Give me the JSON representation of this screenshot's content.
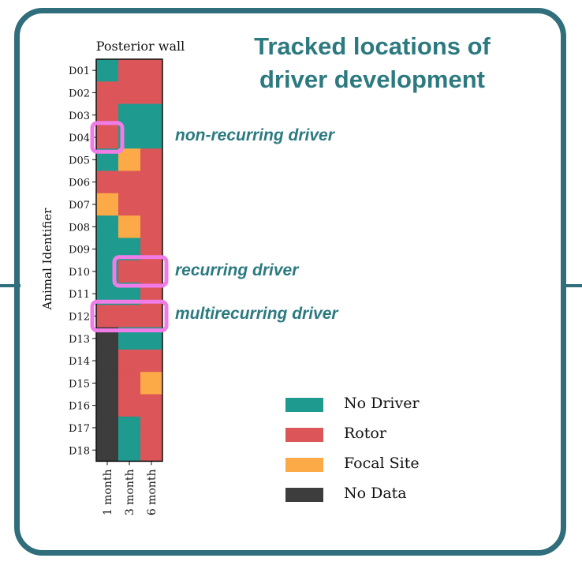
{
  "title_lines": [
    "Tracked locations of",
    "driver development"
  ],
  "colors": {
    "frame": "#2f6e7a",
    "title": "#2c7a80",
    "highlight": "#f07ce8"
  },
  "annotations": {
    "non_recurring": "non-recurring driver",
    "recurring": "recurring driver",
    "multirecurring": "multirecurring driver"
  },
  "chart_data": {
    "type": "heatmap",
    "title": "Posterior wall",
    "ylabel": "Animal Identifier",
    "xlabel": "",
    "x": [
      "1 month",
      "3 month",
      "6 month"
    ],
    "y": [
      "D01",
      "D02",
      "D03",
      "D04",
      "D05",
      "D06",
      "D07",
      "D08",
      "D09",
      "D10",
      "D11",
      "D12",
      "D13",
      "D14",
      "D15",
      "D16",
      "D17",
      "D18"
    ],
    "categories": [
      {
        "name": "No Driver",
        "color": "#1f9a8e"
      },
      {
        "name": "Rotor",
        "color": "#dc5559"
      },
      {
        "name": "Focal Site",
        "color": "#fbaa47"
      },
      {
        "name": "No Data",
        "color": "#3d3d3d"
      }
    ],
    "values": [
      [
        "No Driver",
        "Rotor",
        "Rotor"
      ],
      [
        "Rotor",
        "Rotor",
        "Rotor"
      ],
      [
        "Rotor",
        "No Driver",
        "No Driver"
      ],
      [
        "Rotor",
        "No Driver",
        "No Driver"
      ],
      [
        "No Driver",
        "Focal Site",
        "Rotor"
      ],
      [
        "Rotor",
        "Rotor",
        "Rotor"
      ],
      [
        "Focal Site",
        "Rotor",
        "Rotor"
      ],
      [
        "No Driver",
        "Focal Site",
        "Rotor"
      ],
      [
        "No Driver",
        "No Driver",
        "Rotor"
      ],
      [
        "No Driver",
        "Rotor",
        "Rotor"
      ],
      [
        "No Driver",
        "No Driver",
        "Rotor"
      ],
      [
        "Rotor",
        "Rotor",
        "Rotor"
      ],
      [
        "No Data",
        "No Driver",
        "No Driver"
      ],
      [
        "No Data",
        "Rotor",
        "Rotor"
      ],
      [
        "No Data",
        "Rotor",
        "Focal Site"
      ],
      [
        "No Data",
        "Rotor",
        "Rotor"
      ],
      [
        "No Data",
        "No Driver",
        "Rotor"
      ],
      [
        "No Data",
        "No Driver",
        "Rotor"
      ]
    ],
    "highlights": [
      {
        "label": "non-recurring driver",
        "row": "D04",
        "cols": [
          "1 month"
        ]
      },
      {
        "label": "recurring driver",
        "row": "D10",
        "cols": [
          "3 month",
          "6 month"
        ]
      },
      {
        "label": "multirecurring driver",
        "row": "D12",
        "cols": [
          "1 month",
          "3 month",
          "6 month"
        ]
      }
    ]
  }
}
